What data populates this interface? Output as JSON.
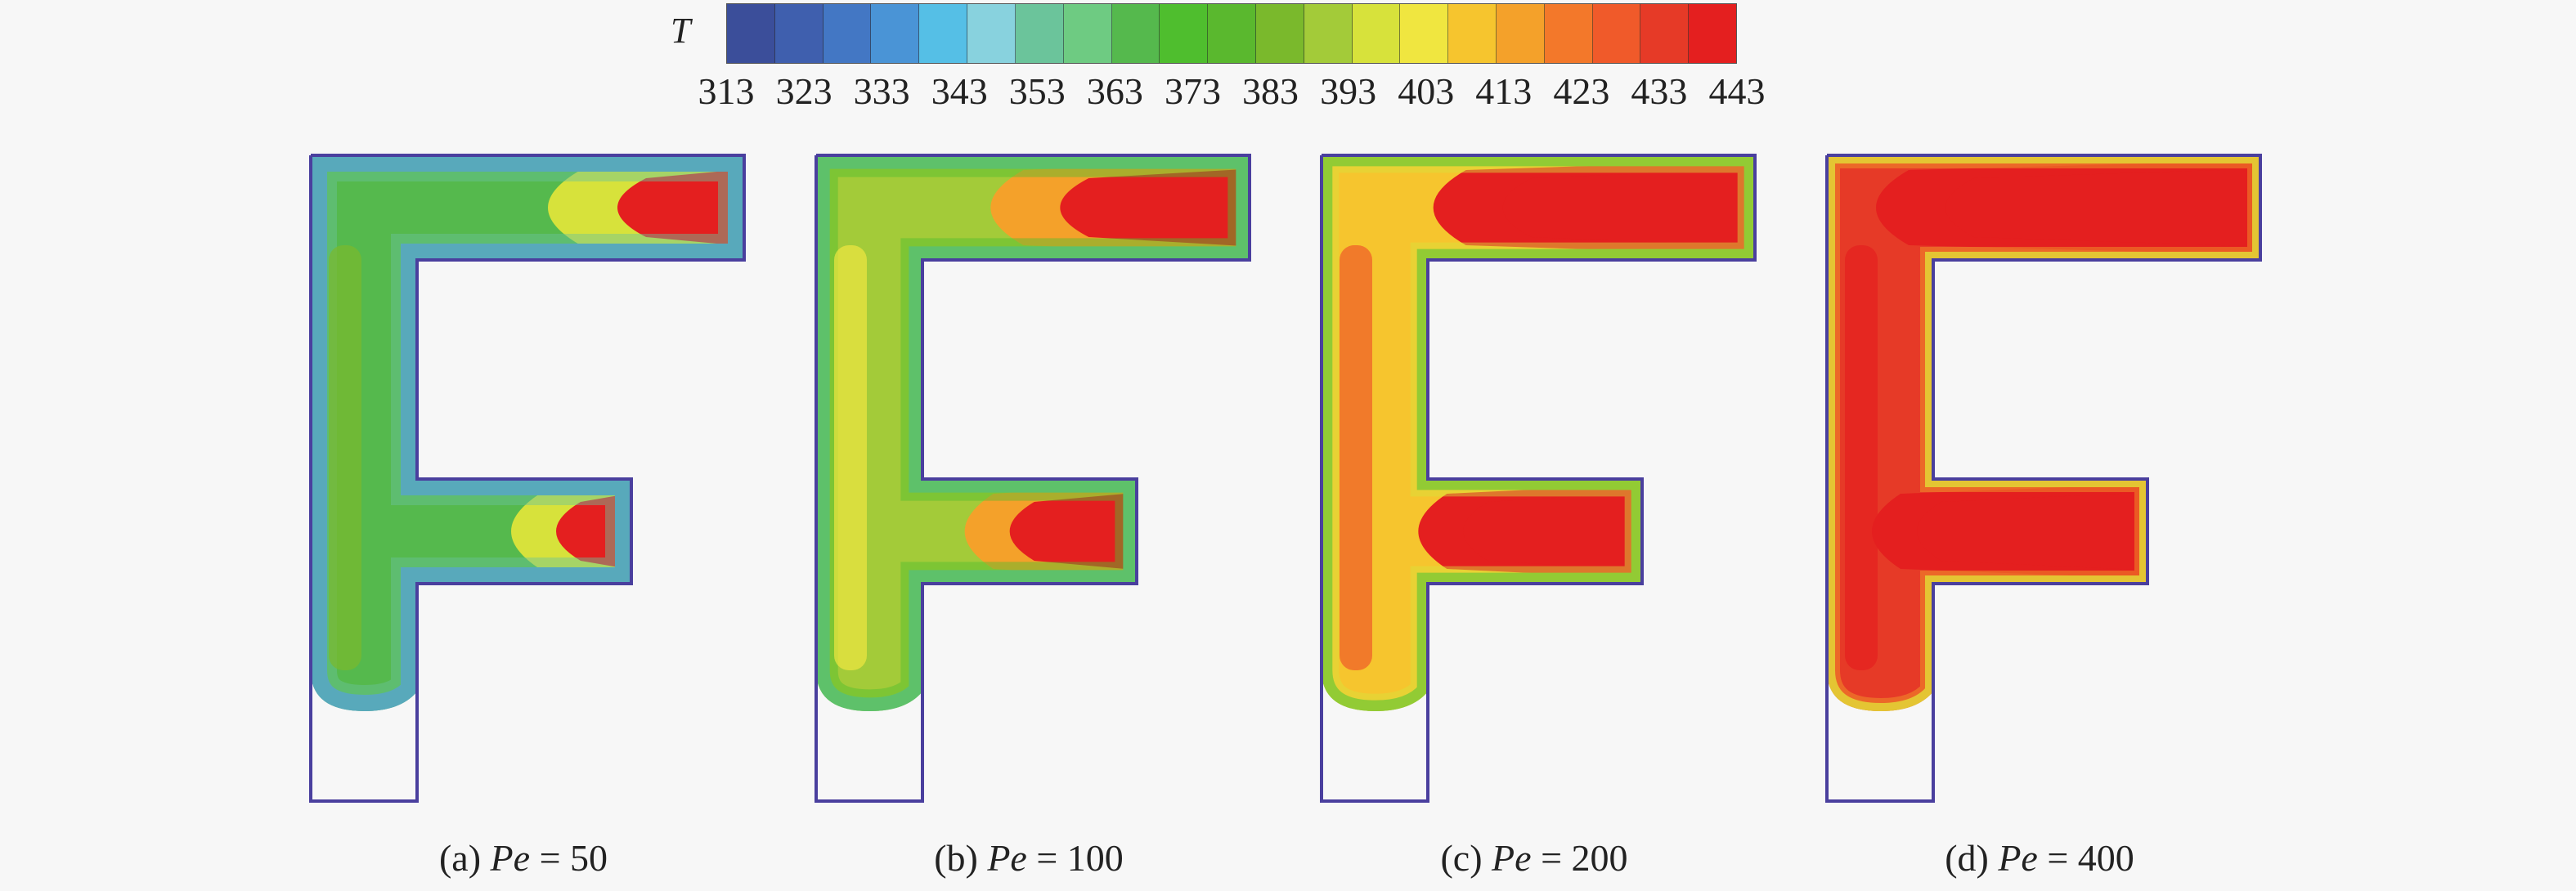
{
  "colorbar": {
    "variable": "T",
    "ticks": [
      "313",
      "323",
      "333",
      "343",
      "353",
      "363",
      "373",
      "383",
      "393",
      "403",
      "413",
      "423",
      "433",
      "443"
    ],
    "range": [
      313,
      443
    ],
    "colors": [
      "#3b4e9a",
      "#3f5fae",
      "#4377c4",
      "#4a94d6",
      "#55bfe6",
      "#88d2de",
      "#6bc49b",
      "#6ecb82",
      "#55b94d",
      "#4fbe2e",
      "#5ab82e",
      "#7ab92c",
      "#a3cb39",
      "#d7e23b",
      "#f0e640",
      "#f6c52e",
      "#f4a12a",
      "#f3782a",
      "#f05a2a",
      "#e63a27",
      "#e41f1f"
    ]
  },
  "panels": [
    {
      "caption_prefix": "(a) ",
      "variable": "Pe",
      "caption_rest": " = 50",
      "pe": 50
    },
    {
      "caption_prefix": "(b) ",
      "variable": "Pe",
      "caption_rest": " = 100",
      "pe": 100
    },
    {
      "caption_prefix": "(c) ",
      "variable": "Pe",
      "caption_rest": " = 200",
      "pe": 200
    },
    {
      "caption_prefix": "(d) ",
      "variable": "Pe",
      "caption_rest": " = 400",
      "pe": 400
    }
  ]
}
